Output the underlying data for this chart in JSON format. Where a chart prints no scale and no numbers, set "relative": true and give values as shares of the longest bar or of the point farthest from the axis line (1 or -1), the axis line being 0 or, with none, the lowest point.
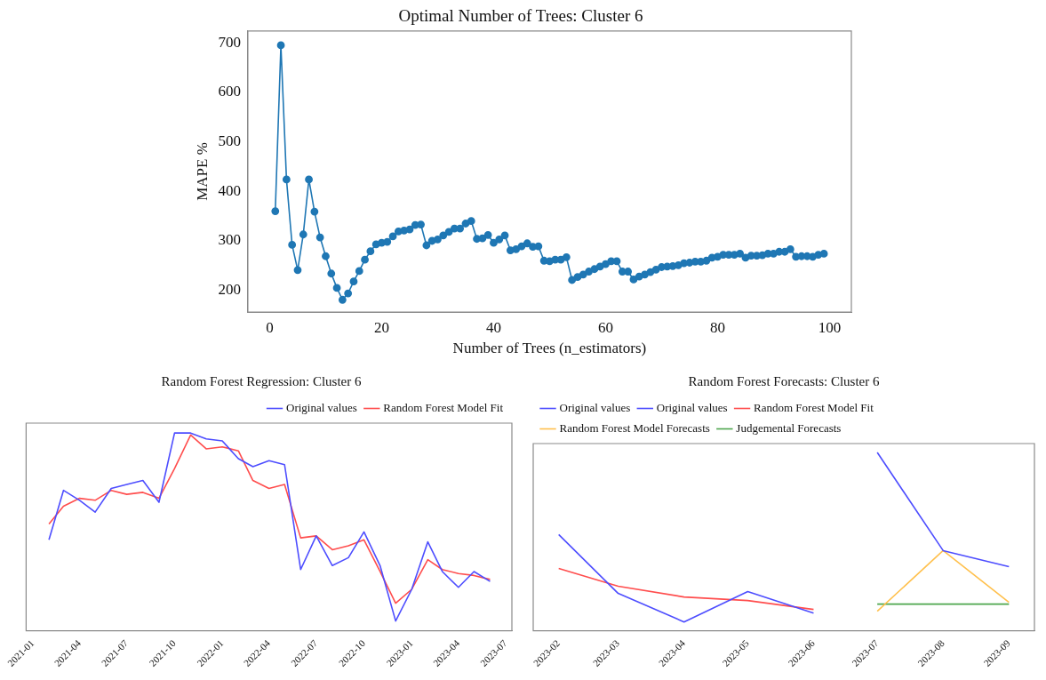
{
  "chart_data": [
    {
      "type": "line",
      "title": "Optimal Number of Trees: Cluster 6",
      "xlabel": "Number of Trees (n_estimators)",
      "ylabel": "MAPE %",
      "xlim": [
        -3.9,
        103.9
      ],
      "ylim": [
        156,
        724
      ],
      "xticks": [
        0,
        20,
        40,
        60,
        80,
        100
      ],
      "yticks": [
        200,
        300,
        400,
        500,
        600,
        700
      ],
      "marker": "circle",
      "grid": false,
      "legend": false,
      "series": [
        {
          "color": "#1f77b4",
          "x": [
            1,
            2,
            3,
            4,
            5,
            6,
            7,
            8,
            9,
            10,
            11,
            12,
            13,
            14,
            15,
            16,
            17,
            18,
            19,
            20,
            21,
            22,
            23,
            24,
            25,
            26,
            27,
            28,
            29,
            30,
            31,
            32,
            33,
            34,
            35,
            36,
            37,
            38,
            39,
            40,
            41,
            42,
            43,
            44,
            45,
            46,
            47,
            48,
            49,
            50,
            51,
            52,
            53,
            54,
            55,
            56,
            57,
            58,
            59,
            60,
            61,
            62,
            63,
            64,
            65,
            66,
            67,
            68,
            69,
            70,
            71,
            72,
            73,
            74,
            75,
            76,
            77,
            78,
            79,
            80,
            81,
            82,
            83,
            84,
            85,
            86,
            87,
            88,
            89,
            90,
            91,
            92,
            93,
            94,
            95,
            96,
            97,
            98,
            99
          ],
          "values": [
            360,
            695,
            424,
            292,
            241,
            313,
            424,
            359,
            307,
            269,
            234,
            205,
            181,
            194,
            218,
            239,
            262,
            279,
            293,
            296,
            298,
            309,
            319,
            321,
            323,
            332,
            333,
            291,
            300,
            303,
            311,
            318,
            325,
            325,
            335,
            340,
            304,
            305,
            312,
            296,
            303,
            311,
            281,
            283,
            289,
            295,
            288,
            289,
            260,
            259,
            262,
            262,
            267,
            221,
            227,
            232,
            238,
            243,
            248,
            253,
            259,
            259,
            238,
            238,
            222,
            228,
            232,
            237,
            242,
            247,
            248,
            249,
            251,
            255,
            256,
            258,
            258,
            260,
            266,
            268,
            272,
            272,
            272,
            274,
            266,
            270,
            270,
            271,
            274,
            274,
            278,
            278,
            283,
            268,
            269,
            269,
            268,
            272,
            274
          ]
        }
      ]
    },
    {
      "type": "line",
      "title": "Random Forest Regression: Cluster 6",
      "relative": true,
      "marker": "none",
      "grid": false,
      "legend": "top right",
      "xlim": [
        "2020-12-19",
        "2023-07-13"
      ],
      "xticks": [
        "2021-01",
        "2021-04",
        "2021-07",
        "2021-10",
        "2022-01",
        "2022-04",
        "2022-07",
        "2022-10",
        "2023-01",
        "2023-04",
        "2023-07"
      ],
      "series": [
        {
          "name": "Original values",
          "color": "#4d4dff",
          "x": [
            "2021-02",
            "2021-03",
            "2021-04",
            "2021-05",
            "2021-06",
            "2021-07",
            "2021-08",
            "2021-09",
            "2021-10",
            "2021-11",
            "2021-12",
            "2022-01",
            "2022-02",
            "2022-03",
            "2022-04",
            "2022-05",
            "2022-06",
            "2022-07",
            "2022-08",
            "2022-09",
            "2022-10",
            "2022-11",
            "2022-12",
            "2023-01",
            "2023-02",
            "2023-03",
            "2023-04",
            "2023-05",
            "2023-06"
          ],
          "values": [
            0.46,
            0.71,
            0.66,
            0.6,
            0.72,
            0.74,
            0.76,
            0.65,
            1.0,
            1.0,
            0.97,
            0.96,
            0.87,
            0.83,
            0.86,
            0.84,
            0.31,
            0.48,
            0.33,
            0.37,
            0.5,
            0.33,
            0.05,
            0.21,
            0.45,
            0.3,
            0.22,
            0.3,
            0.25
          ]
        },
        {
          "name": "Random Forest Model Fit",
          "color": "#ff4d4d",
          "x": [
            "2021-02",
            "2021-03",
            "2021-04",
            "2021-05",
            "2021-06",
            "2021-07",
            "2021-08",
            "2021-09",
            "2021-10",
            "2021-11",
            "2021-12",
            "2022-01",
            "2022-02",
            "2022-03",
            "2022-04",
            "2022-05",
            "2022-06",
            "2022-07",
            "2022-08",
            "2022-09",
            "2022-10",
            "2022-11",
            "2022-12",
            "2023-01",
            "2023-02",
            "2023-03",
            "2023-04",
            "2023-05",
            "2023-06"
          ],
          "values": [
            0.54,
            0.63,
            0.67,
            0.66,
            0.71,
            0.69,
            0.7,
            0.67,
            0.82,
            0.99,
            0.92,
            0.93,
            0.91,
            0.76,
            0.72,
            0.74,
            0.47,
            0.48,
            0.41,
            0.43,
            0.46,
            0.3,
            0.14,
            0.21,
            0.36,
            0.31,
            0.29,
            0.28,
            0.26
          ]
        }
      ]
    },
    {
      "type": "line",
      "title": "Random Forest Forecasts: Cluster 6",
      "relative": true,
      "marker": "none",
      "grid": false,
      "legend": "top left",
      "xlim": [
        "2023-01-20",
        "2023-09-13"
      ],
      "xticks": [
        "2023-02",
        "2023-03",
        "2023-04",
        "2023-05",
        "2023-06",
        "2023-07",
        "2023-08",
        "2023-09"
      ],
      "series": [
        {
          "name": "Original values",
          "color": "#4d4dff",
          "x": [
            "2023-02",
            "2023-03",
            "2023-04",
            "2023-05",
            "2023-06"
          ],
          "values": [
            0.54,
            0.21,
            0.05,
            0.22,
            0.1
          ]
        },
        {
          "name": "Original values",
          "color": "#4d4dff",
          "x": [
            "2023-07",
            "2023-08",
            "2023-09"
          ],
          "values": [
            1,
            0.45,
            0.36
          ]
        },
        {
          "name": "Random Forest Model Fit",
          "color": "#ff4d4d",
          "x": [
            "2023-02",
            "2023-03",
            "2023-04",
            "2023-05",
            "2023-06"
          ],
          "values": [
            0.35,
            0.25,
            0.19,
            0.17,
            0.12
          ]
        },
        {
          "name": "Random Forest Model Forecasts",
          "color": "#ffc04d",
          "x": [
            "2023-07",
            "2023-08",
            "2023-09"
          ],
          "values": [
            0.11,
            0.45,
            0.16
          ]
        },
        {
          "name": "Judgemental Forecasts",
          "color": "#4da64d",
          "x": [
            "2023-07",
            "2023-08",
            "2023-09"
          ],
          "values": [
            0.15,
            0.15,
            0.15
          ]
        }
      ]
    }
  ]
}
